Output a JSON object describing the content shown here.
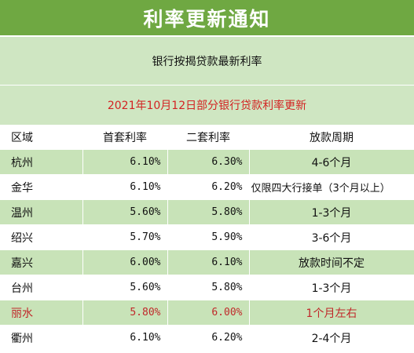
{
  "title": "利率更新通知",
  "subtitle": "银行按揭贷款最新利率",
  "update_line": "2021年10月12日部分银行贷款利率更新",
  "table": {
    "headers": [
      "区域",
      "首套利率",
      "二套利率",
      "放款周期"
    ],
    "rows": [
      {
        "region": "杭州",
        "first": "6.10%",
        "second": "6.30%",
        "period": "4-6个月"
      },
      {
        "region": "金华",
        "first": "6.10%",
        "second": "6.20%",
        "period": "仅限四大行接单（3个月以上）"
      },
      {
        "region": "温州",
        "first": "5.60%",
        "second": "5.80%",
        "period": "1-3个月"
      },
      {
        "region": "绍兴",
        "first": "5.70%",
        "second": "5.90%",
        "period": "3-6个月"
      },
      {
        "region": "嘉兴",
        "first": "6.00%",
        "second": "6.10%",
        "period": "放款时间不定"
      },
      {
        "region": "台州",
        "first": "5.60%",
        "second": "5.80%",
        "period": "1-3个月"
      },
      {
        "region": "丽水",
        "first": "5.80%",
        "second": "6.00%",
        "period": "1个月左右"
      },
      {
        "region": "衢州",
        "first": "6.10%",
        "second": "6.20%",
        "period": "2-4个月"
      }
    ]
  },
  "colors": {
    "title_bg": "#6fa842",
    "band_bg": "#cfe6c2",
    "row_alt_bg": "#c8e3b8",
    "highlight_text": "#c0282a",
    "date_text": "#d32222"
  }
}
